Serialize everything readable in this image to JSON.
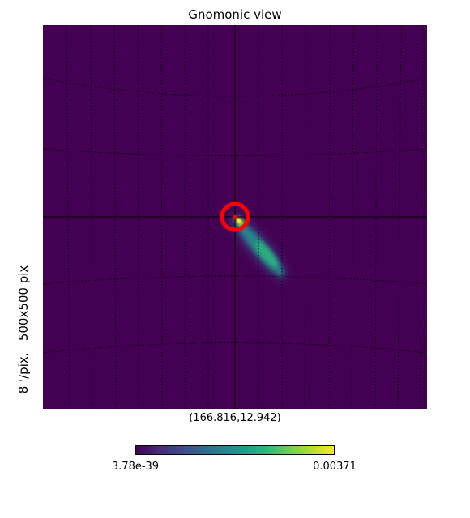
{
  "chart_data": {
    "type": "heatmap",
    "title": "Gnomonic view",
    "projection": "gnomonic",
    "center_label": "(166.816,12.942)",
    "resolution_label": "8 '/pix,   500x500 pix",
    "grid": true,
    "colormap": "viridis",
    "colorbar": {
      "min_label": "3.78e-39",
      "max_label": "0.00371"
    },
    "marker": {
      "shape": "circle",
      "color": "#ff0000"
    },
    "colors": {
      "background": "#440154",
      "marker": "#ff0000"
    }
  }
}
